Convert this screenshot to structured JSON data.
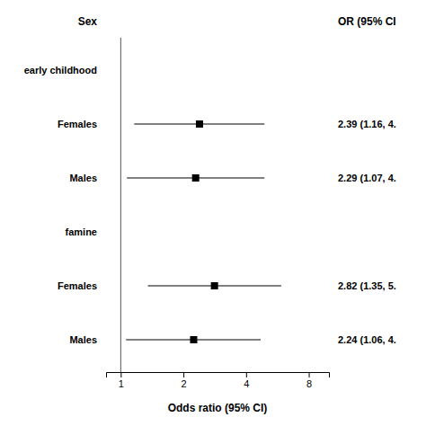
{
  "chart_data": {
    "type": "forest",
    "xlabel": "Odds ratio (95% CI)",
    "column_headers": [
      "Sex",
      "OR (95% CI"
    ],
    "categories": [
      "early childhood",
      "Females",
      "Males",
      "famine",
      "Females",
      "Males"
    ],
    "values": [
      null,
      2.39,
      2.29,
      null,
      2.82,
      2.24
    ],
    "ci_low": [
      null,
      1.16,
      1.07,
      null,
      1.35,
      1.06
    ],
    "ci_high": [
      null,
      4.9,
      4.9,
      null,
      5.9,
      4.7
    ],
    "value_labels": [
      null,
      "2.39 (1.16, 4.",
      "2.29 (1.07, 4.",
      null,
      "2.82 (1.35, 5.",
      "2.24 (1.06, 4."
    ],
    "ref_line": 1,
    "log": "x",
    "xlim": [
      0.85,
      10.0
    ],
    "xticks": [
      1,
      2,
      4,
      8
    ],
    "color": "#000000"
  }
}
